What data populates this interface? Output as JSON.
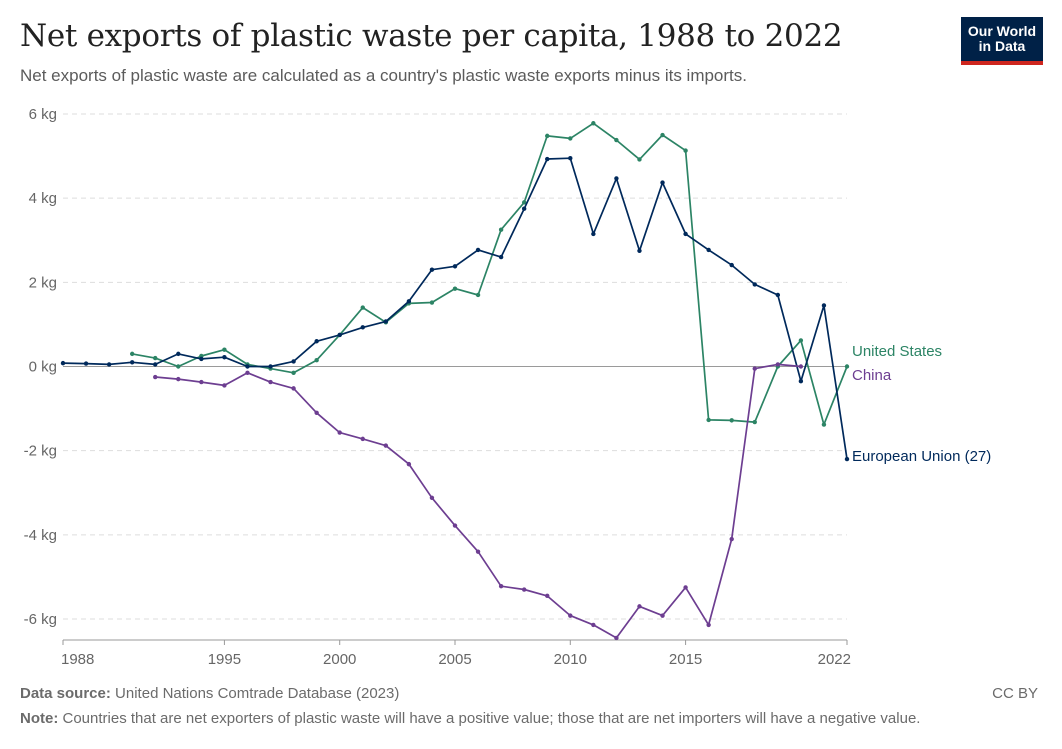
{
  "header": {
    "title": "Net exports of plastic waste per capita, 1988 to 2022",
    "subtitle": "Net exports of plastic waste are calculated as a country's plastic waste exports minus its imports.",
    "logo_line1": "Our World",
    "logo_line2": "in Data"
  },
  "footer": {
    "source_label": "Data source:",
    "source_text": "United Nations Comtrade Database (2023)",
    "note_label": "Note:",
    "note_text": "Countries that are net exporters of plastic waste will have a positive value; those that are net importers will have a negative value.",
    "license": "CC BY"
  },
  "colors": {
    "united_states": "#2c8465",
    "european_union": "#00295b",
    "china": "#6d3e91"
  },
  "chart_data": {
    "type": "line",
    "title": "Net exports of plastic waste per capita, 1988 to 2022",
    "xlim": [
      1988,
      2022
    ],
    "ylim": [
      -6.5,
      6
    ],
    "x_ticks": [
      1988,
      1995,
      2000,
      2005,
      2010,
      2015,
      2022
    ],
    "y_ticks": [
      6,
      4,
      2,
      0,
      -2,
      -4,
      -6
    ],
    "y_tick_labels": [
      "6 kg",
      "4 kg",
      "2 kg",
      "0 kg",
      "-2 kg",
      "-4 kg",
      "-6 kg"
    ],
    "grid": true,
    "legend": "inline-right",
    "series": [
      {
        "name": "United States",
        "color": "#2c8465",
        "x": [
          1991,
          1992,
          1993,
          1994,
          1995,
          1996,
          1997,
          1998,
          1999,
          2000,
          2001,
          2002,
          2003,
          2004,
          2005,
          2006,
          2007,
          2008,
          2009,
          2010,
          2011,
          2012,
          2013,
          2014,
          2015,
          2016,
          2017,
          2018,
          2019,
          2020,
          2021,
          2022
        ],
        "y": [
          0.3,
          0.2,
          0.0,
          0.25,
          0.4,
          0.05,
          -0.05,
          -0.15,
          0.15,
          0.75,
          1.4,
          1.05,
          1.5,
          1.52,
          1.85,
          1.7,
          3.25,
          3.9,
          5.48,
          5.42,
          5.78,
          5.38,
          4.92,
          5.5,
          5.13,
          -1.27,
          -1.28,
          -1.32,
          0.0,
          0.62,
          -1.38,
          0.0
        ]
      },
      {
        "name": "European Union (27)",
        "color": "#00295b",
        "x": [
          1988,
          1989,
          1990,
          1991,
          1992,
          1993,
          1994,
          1995,
          1996,
          1997,
          1998,
          1999,
          2000,
          2001,
          2002,
          2003,
          2004,
          2005,
          2006,
          2007,
          2008,
          2009,
          2010,
          2011,
          2012,
          2013,
          2014,
          2015,
          2016,
          2017,
          2018,
          2019,
          2020,
          2021,
          2022
        ],
        "y": [
          0.08,
          0.07,
          0.05,
          0.1,
          0.05,
          0.3,
          0.18,
          0.22,
          0.0,
          0.0,
          0.12,
          0.6,
          0.75,
          0.93,
          1.07,
          1.55,
          2.3,
          2.38,
          2.77,
          2.6,
          3.75,
          4.93,
          4.95,
          3.15,
          4.47,
          2.75,
          4.37,
          3.15,
          2.77,
          2.41,
          1.95,
          1.7,
          -0.35,
          1.45,
          -2.2
        ]
      },
      {
        "name": "China",
        "color": "#6d3e91",
        "x": [
          1992,
          1993,
          1994,
          1995,
          1996,
          1997,
          1998,
          1999,
          2000,
          2001,
          2002,
          2003,
          2004,
          2005,
          2006,
          2007,
          2008,
          2009,
          2010,
          2011,
          2012,
          2013,
          2014,
          2015,
          2016,
          2017,
          2018,
          2019,
          2020
        ],
        "y": [
          -0.25,
          -0.3,
          -0.37,
          -0.45,
          -0.15,
          -0.37,
          -0.52,
          -1.1,
          -1.57,
          -1.72,
          -1.88,
          -2.32,
          -3.12,
          -3.78,
          -4.4,
          -5.22,
          -5.3,
          -5.45,
          -5.92,
          -6.14,
          -6.45,
          -5.7,
          -5.92,
          -5.25,
          -6.14,
          -4.1,
          -0.05,
          0.05,
          0.0
        ]
      }
    ]
  }
}
